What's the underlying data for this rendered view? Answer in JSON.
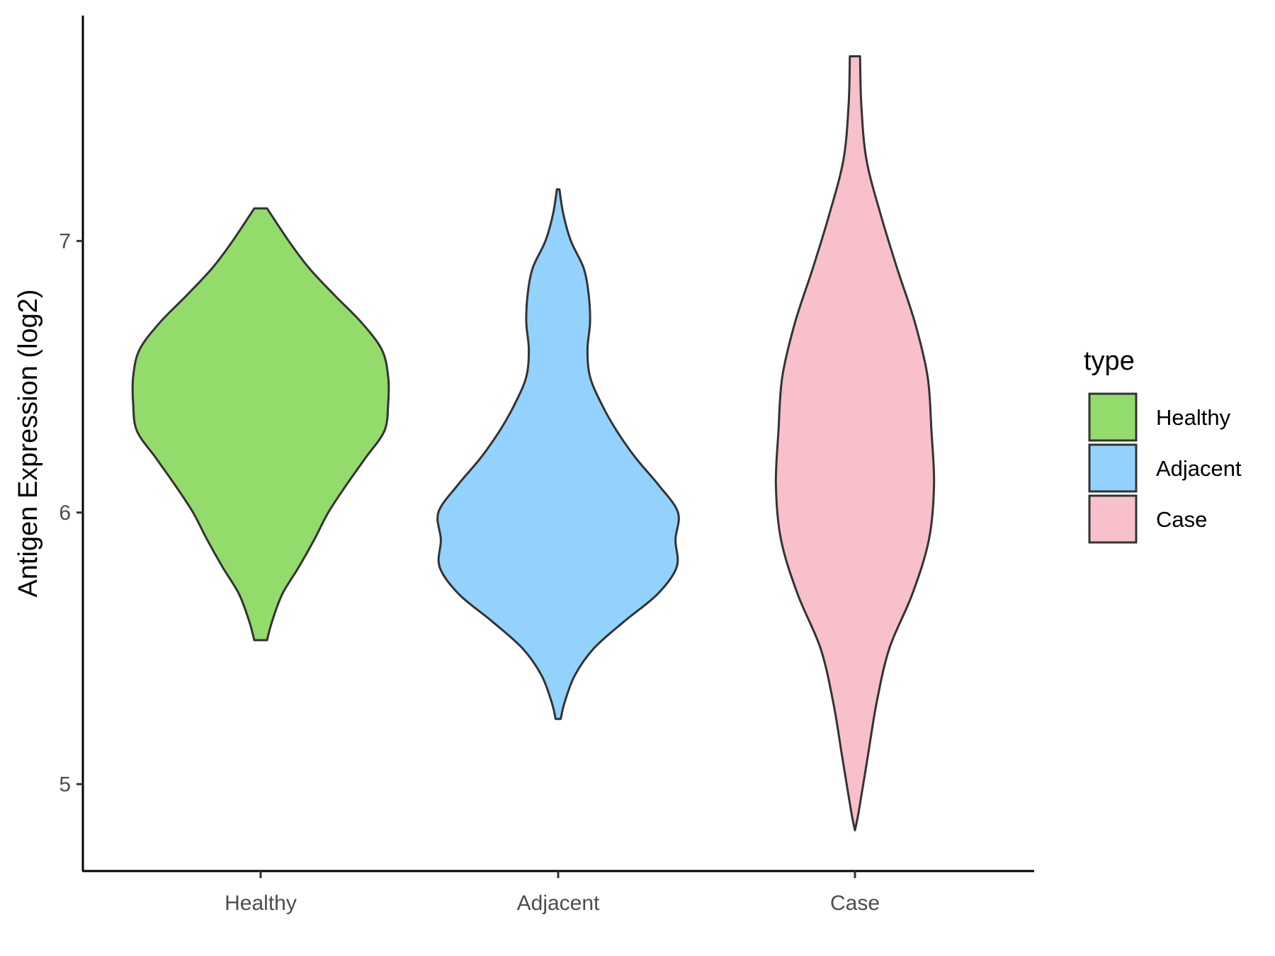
{
  "chart_data": {
    "type": "violin",
    "title": "",
    "xlabel": "",
    "ylabel": "Antigen Expression (log2)",
    "ylim": [
      4.68,
      7.83
    ],
    "yticks": [
      5,
      6,
      7
    ],
    "categories": [
      "Healthy",
      "Adjacent",
      "Case"
    ],
    "grid": false,
    "legend": {
      "title": "type",
      "placement": "right",
      "entries": [
        "Healthy",
        "Adjacent",
        "Case"
      ]
    },
    "series": [
      {
        "name": "Healthy",
        "color": "#93DB6B",
        "min": 5.53,
        "max": 7.12,
        "density": [
          [
            7.12,
            0.05
          ],
          [
            7.0,
            0.22
          ],
          [
            6.9,
            0.38
          ],
          [
            6.8,
            0.58
          ],
          [
            6.7,
            0.79
          ],
          [
            6.6,
            0.95
          ],
          [
            6.5,
            1.0
          ],
          [
            6.4,
            1.0
          ],
          [
            6.3,
            0.97
          ],
          [
            6.2,
            0.82
          ],
          [
            6.1,
            0.67
          ],
          [
            6.0,
            0.53
          ],
          [
            5.9,
            0.42
          ],
          [
            5.8,
            0.3
          ],
          [
            5.7,
            0.17
          ],
          [
            5.6,
            0.09
          ],
          [
            5.53,
            0.05
          ]
        ]
      },
      {
        "name": "Adjacent",
        "color": "#92D2FC",
        "min": 5.24,
        "max": 7.19,
        "density": [
          [
            7.19,
            0.01
          ],
          [
            7.1,
            0.04
          ],
          [
            7.0,
            0.1
          ],
          [
            6.9,
            0.2
          ],
          [
            6.8,
            0.24
          ],
          [
            6.7,
            0.25
          ],
          [
            6.6,
            0.23
          ],
          [
            6.5,
            0.25
          ],
          [
            6.4,
            0.34
          ],
          [
            6.3,
            0.46
          ],
          [
            6.2,
            0.61
          ],
          [
            6.1,
            0.79
          ],
          [
            6.0,
            0.94
          ],
          [
            5.9,
            0.92
          ],
          [
            5.8,
            0.93
          ],
          [
            5.7,
            0.78
          ],
          [
            5.6,
            0.52
          ],
          [
            5.5,
            0.28
          ],
          [
            5.4,
            0.13
          ],
          [
            5.3,
            0.05
          ],
          [
            5.24,
            0.02
          ]
        ]
      },
      {
        "name": "Case",
        "color": "#F7C0CB",
        "min": 4.83,
        "max": 7.68,
        "density": [
          [
            7.68,
            0.04
          ],
          [
            7.5,
            0.05
          ],
          [
            7.3,
            0.09
          ],
          [
            7.1,
            0.2
          ],
          [
            6.9,
            0.33
          ],
          [
            6.7,
            0.47
          ],
          [
            6.5,
            0.57
          ],
          [
            6.3,
            0.6
          ],
          [
            6.1,
            0.62
          ],
          [
            5.9,
            0.58
          ],
          [
            5.7,
            0.45
          ],
          [
            5.5,
            0.27
          ],
          [
            5.3,
            0.17
          ],
          [
            5.1,
            0.1
          ],
          [
            4.9,
            0.03
          ],
          [
            4.83,
            0.0
          ]
        ]
      }
    ]
  }
}
